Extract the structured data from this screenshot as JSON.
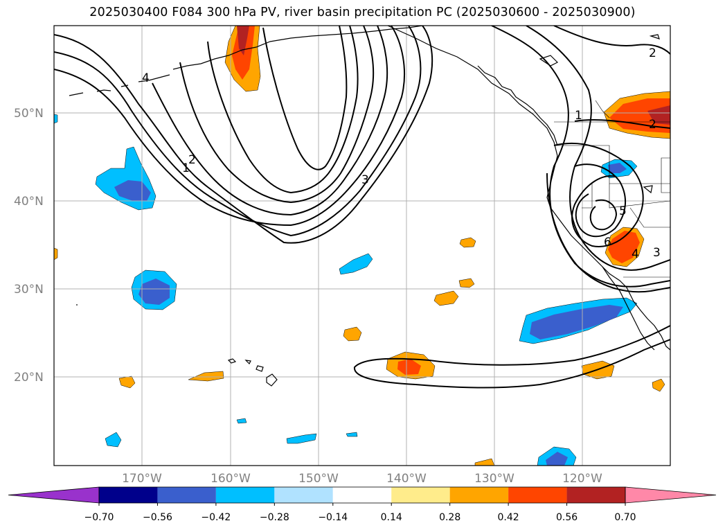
{
  "title": "2025030400 F084 300 hPa PV, river basin precipitation PC (2025030600 - 2025030900)",
  "map": {
    "lon_labels": [
      "170°W",
      "160°W",
      "150°W",
      "140°W",
      "130°W",
      "120°W"
    ],
    "lat_labels": [
      "50°N",
      "40°N",
      "30°N",
      "20°N"
    ],
    "contour_labels": [
      "1",
      "2",
      "3",
      "4",
      "5",
      "2",
      "1",
      "3"
    ],
    "colors": {
      "orange": "#ffa500",
      "light_orange": "#ffe88c",
      "red_orange": "#ff4500",
      "dark_red": "#b22222",
      "blue": "#3a5fcd",
      "light_blue": "#00bfff",
      "grid": "#b0b0b0"
    }
  },
  "colorbar": {
    "ticks": [
      "−0.70",
      "−0.56",
      "−0.42",
      "−0.28",
      "−0.14",
      "0.14",
      "0.28",
      "0.42",
      "0.56",
      "0.70"
    ],
    "colors": [
      "#9932cc",
      "#00008b",
      "#3a5fcd",
      "#00bfff",
      "#b0e2ff",
      "#ffffff",
      "#ffec8b",
      "#ffa500",
      "#ff4500",
      "#b22222",
      "#ff88a8"
    ]
  }
}
